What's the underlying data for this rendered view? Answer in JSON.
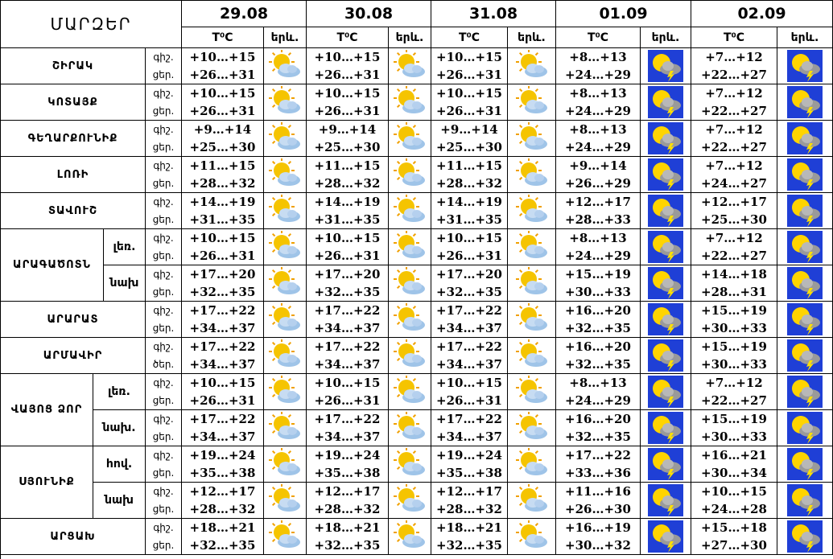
{
  "header": {
    "title": "ՄԱՐԶԵՐ",
    "dates": [
      "29.08",
      "30.08",
      "31.08",
      "01.09",
      "02.09"
    ],
    "temp_label": "T⁰C",
    "icon_label": "երև."
  },
  "regions": [
    {
      "name": "ՇԻՐԱԿ",
      "rows": [
        {
          "labels": [
            "գիշ.",
            "ցեր."
          ],
          "temps": [
            [
              "+10…+15",
              "+26…+31"
            ],
            [
              "+10…+15",
              "+26…+31"
            ],
            [
              "+10…+15",
              "+26…+31"
            ],
            [
              "+8…+13",
              "+24…+29"
            ],
            [
              "+7…+12",
              "+22…+27"
            ]
          ]
        }
      ]
    },
    {
      "name": "ԿՈՏԱՅՔ",
      "rows": [
        {
          "labels": [
            "գիշ.",
            "ցեր."
          ],
          "temps": [
            [
              "+10…+15",
              "+26…+31"
            ],
            [
              "+10…+15",
              "+26…+31"
            ],
            [
              "+10…+15",
              "+26…+31"
            ],
            [
              "+8…+13",
              "+24…+29"
            ],
            [
              "+7…+12",
              "+22…+27"
            ]
          ]
        }
      ]
    },
    {
      "name": "ԳԵՂԱՐՔՈՒՆԻՔ",
      "rows": [
        {
          "labels": [
            "գիշ.",
            "ցեր."
          ],
          "temps": [
            [
              "+9…+14",
              "+25…+30"
            ],
            [
              "+9…+14",
              "+25…+30"
            ],
            [
              "+9…+14",
              "+25…+30"
            ],
            [
              "+8…+13",
              "+24…+29"
            ],
            [
              "+7…+12",
              "+22…+27"
            ]
          ]
        }
      ]
    },
    {
      "name": "ԼՈՌԻ",
      "rows": [
        {
          "labels": [
            "գիշ.",
            "ցեր."
          ],
          "temps": [
            [
              "+11…+15",
              "+28…+32"
            ],
            [
              "+11…+15",
              "+28…+32"
            ],
            [
              "+11…+15",
              "+28…+32"
            ],
            [
              "+9…+14",
              "+26…+29"
            ],
            [
              "+7…+12",
              "+24…+27"
            ]
          ]
        }
      ]
    },
    {
      "name": "ՏԱՎՈՒՇ",
      "rows": [
        {
          "labels": [
            "գիշ.",
            "ցեր."
          ],
          "temps": [
            [
              "+14…+19",
              "+31…+35"
            ],
            [
              "+14…+19",
              "+31…+35"
            ],
            [
              "+14…+19",
              "+31…+35"
            ],
            [
              "+12…+17",
              "+28…+33"
            ],
            [
              "+12…+17",
              "+25…+30"
            ]
          ]
        }
      ]
    },
    {
      "name": "ԱՐԱԳԱԾՈՏՆ",
      "rows": [
        {
          "sub": "լեռ.",
          "labels": [
            "գիշ.",
            "ցեր."
          ],
          "temps": [
            [
              "+10…+15",
              "+26…+31"
            ],
            [
              "+10…+15",
              "+26…+31"
            ],
            [
              "+10…+15",
              "+26…+31"
            ],
            [
              "+8…+13",
              "+24…+29"
            ],
            [
              "+7…+12",
              "+22…+27"
            ]
          ]
        },
        {
          "sub": "նախ",
          "labels": [
            "գիշ.",
            "ցեր."
          ],
          "temps": [
            [
              "+17…+20",
              "+32…+35"
            ],
            [
              "+17…+20",
              "+32…+35"
            ],
            [
              "+17…+20",
              "+32…+35"
            ],
            [
              "+15…+19",
              "+30…+33"
            ],
            [
              "+14…+18",
              "+28…+31"
            ]
          ]
        }
      ]
    },
    {
      "name": "ԱՐԱՐԱՏ",
      "rows": [
        {
          "labels": [
            "գիշ.",
            "ցեր."
          ],
          "temps": [
            [
              "+17…+22",
              "+34…+37"
            ],
            [
              "+17…+22",
              "+34…+37"
            ],
            [
              "+17…+22",
              "+34…+37"
            ],
            [
              "+16…+20",
              "+32…+35"
            ],
            [
              "+15…+19",
              "+30…+33"
            ]
          ]
        }
      ]
    },
    {
      "name": "ԱՐՄԱՎԻՐ",
      "rows": [
        {
          "labels": [
            "գիշ.",
            "ծեր."
          ],
          "temps": [
            [
              "+17…+22",
              "+34…+37"
            ],
            [
              "+17…+22",
              "+34…+37"
            ],
            [
              "+17…+22",
              "+34…+37"
            ],
            [
              "+16…+20",
              "+32…+35"
            ],
            [
              "+15…+19",
              "+30…+33"
            ]
          ]
        }
      ]
    },
    {
      "name": "ՎԱՅՈՑ ՁՈՐ",
      "rows": [
        {
          "sub": "լեռ.",
          "labels": [
            "գիշ.",
            "ցեր."
          ],
          "temps": [
            [
              "+10…+15",
              "+26…+31"
            ],
            [
              "+10…+15",
              "+26…+31"
            ],
            [
              "+10…+15",
              "+26…+31"
            ],
            [
              "+8…+13",
              "+24…+29"
            ],
            [
              "+7…+12",
              "+22…+27"
            ]
          ]
        },
        {
          "sub": "նախ.",
          "labels": [
            "գիշ.",
            "ցեր."
          ],
          "temps": [
            [
              "+17…+22",
              "+34…+37"
            ],
            [
              "+17…+22",
              "+34…+37"
            ],
            [
              "+17…+22",
              "+34…+37"
            ],
            [
              "+16…+20",
              "+32…+35"
            ],
            [
              "+15…+19",
              "+30…+33"
            ]
          ]
        }
      ]
    },
    {
      "name": "ՍՅՈՒՆԻՔ",
      "rows": [
        {
          "sub": "հով.",
          "labels": [
            "գիշ.",
            "ցեր."
          ],
          "temps": [
            [
              "+19…+24",
              "+35…+38"
            ],
            [
              "+19…+24",
              "+35…+38"
            ],
            [
              "+19…+24",
              "+35…+38"
            ],
            [
              "+17…+22",
              "+33…+36"
            ],
            [
              "+16…+21",
              "+30…+34"
            ]
          ]
        },
        {
          "sub": "նախ",
          "labels": [
            "գիշ.",
            "ցեր."
          ],
          "temps": [
            [
              "+12…+17",
              "+28…+32"
            ],
            [
              "+12…+17",
              "+28…+32"
            ],
            [
              "+12…+17",
              "+28…+32"
            ],
            [
              "+11…+16",
              "+26…+30"
            ],
            [
              "+10…+15",
              "+24…+28"
            ]
          ]
        }
      ]
    },
    {
      "name": "ԱՐՑԱԽ",
      "rows": [
        {
          "labels": [
            "գիշ.",
            "ցեր."
          ],
          "temps": [
            [
              "+18…+21",
              "+32…+35"
            ],
            [
              "+18…+21",
              "+32…+35"
            ],
            [
              "+18…+21",
              "+32…+35"
            ],
            [
              "+16…+19",
              "+30…+32"
            ],
            [
              "+15…+18",
              "+27…+30"
            ]
          ]
        }
      ]
    }
  ]
}
